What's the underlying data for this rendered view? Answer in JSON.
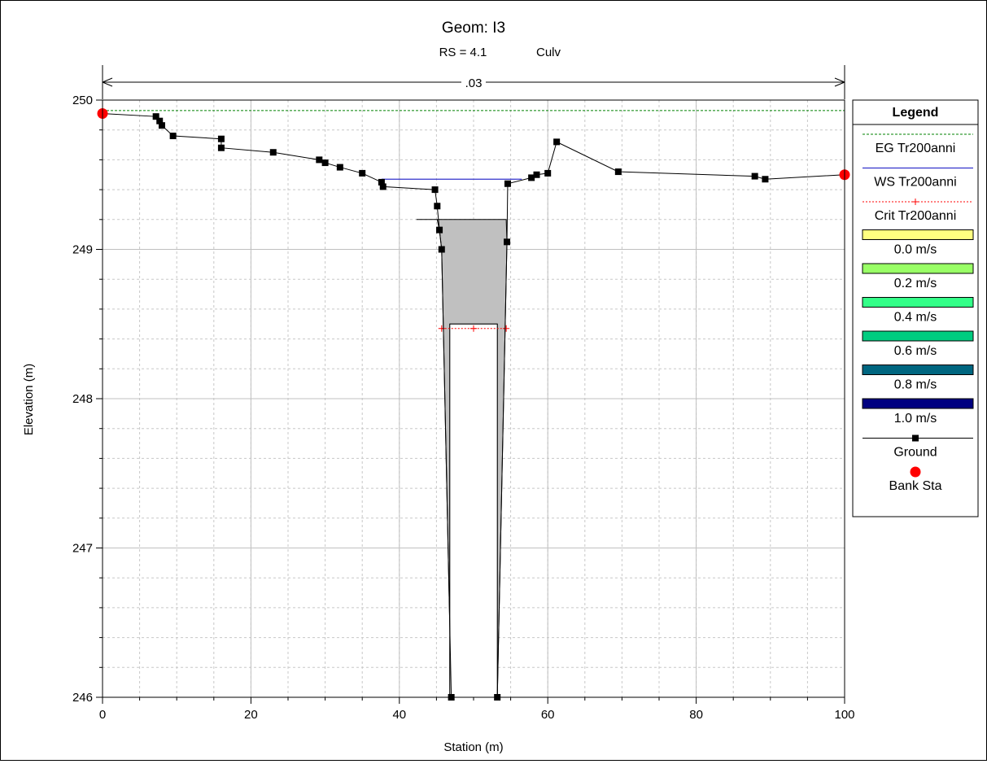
{
  "chart_data": {
    "type": "line",
    "title": "Geom: I3",
    "subtitle_rs": "RS = 4.1",
    "subtitle_type": "Culv",
    "xlabel": "Station (m)",
    "ylabel": "Elevation (m)",
    "xlim": [
      0,
      100
    ],
    "ylim": [
      246,
      250
    ],
    "x_ticks": [
      "0",
      "20",
      "40",
      "60",
      "80",
      "100"
    ],
    "y_ticks": [
      "246",
      "247",
      "248",
      "249",
      "250"
    ],
    "grid": true,
    "manning_label": ".03",
    "legend": {
      "title": "Legend",
      "placement": "right",
      "entries": [
        {
          "label": "EG Tr200anni",
          "kind": "dashed-line",
          "color": "#008000"
        },
        {
          "label": "WS Tr200anni",
          "kind": "line",
          "color": "#3333cc"
        },
        {
          "label": "Crit Tr200anni",
          "kind": "dotted-plus",
          "color": "#ff0000"
        },
        {
          "label": "0.0 m/s",
          "kind": "swatch",
          "color": "#ffff80"
        },
        {
          "label": "0.2 m/s",
          "kind": "swatch",
          "color": "#99ff66"
        },
        {
          "label": "0.4 m/s",
          "kind": "swatch",
          "color": "#33ff88"
        },
        {
          "label": "0.6 m/s",
          "kind": "swatch",
          "color": "#00cc80"
        },
        {
          "label": "0.8 m/s",
          "kind": "swatch",
          "color": "#006680"
        },
        {
          "label": "1.0 m/s",
          "kind": "swatch",
          "color": "#000080"
        },
        {
          "label": "Ground",
          "kind": "line-square",
          "color": "#000000"
        },
        {
          "label": "Bank Sta",
          "kind": "dot",
          "color": "#ff0000"
        }
      ]
    },
    "series": [
      {
        "name": "EG Tr200anni",
        "color": "#008000",
        "x": [
          0,
          100
        ],
        "y": [
          249.93,
          249.93
        ]
      },
      {
        "name": "WS Tr200anni",
        "color": "#3333cc",
        "x": [
          37.6,
          56.5
        ],
        "y": [
          249.47,
          249.47
        ]
      },
      {
        "name": "Crit Tr200anni",
        "color": "#ff0000",
        "x": [
          45.7,
          50,
          54.4
        ],
        "y": [
          248.47,
          248.47,
          248.47
        ]
      },
      {
        "name": "Ground",
        "color": "#000000",
        "x": [
          0,
          7.2,
          7.7,
          8.0,
          9.5,
          16.0,
          16.0,
          23.0,
          29.2,
          30.0,
          32.0,
          35.0,
          37.6,
          37.8,
          44.8,
          45.1,
          45.4,
          45.7,
          47.0,
          53.2,
          54.5,
          54.6,
          57.8,
          58.5,
          60.0,
          61.2,
          69.5,
          87.9,
          89.3,
          100
        ],
        "y": [
          249.91,
          249.89,
          249.86,
          249.83,
          249.76,
          249.74,
          249.68,
          249.65,
          249.6,
          249.58,
          249.55,
          249.51,
          249.45,
          249.42,
          249.4,
          249.29,
          249.13,
          249.0,
          246.0,
          246.0,
          249.05,
          249.44,
          249.48,
          249.5,
          249.51,
          249.72,
          249.52,
          249.49,
          249.47,
          249.5
        ]
      },
      {
        "name": "Bank Sta",
        "color": "#ff0000",
        "x": [
          0,
          100
        ],
        "y": [
          249.91,
          249.5
        ]
      }
    ],
    "culvert": {
      "deck_top": 249.2,
      "deck_x": [
        42.6,
        54.4
      ],
      "opening_x": [
        46.8,
        53.2
      ],
      "opening_top": 248.5,
      "opening_bottom": 246.0
    }
  }
}
